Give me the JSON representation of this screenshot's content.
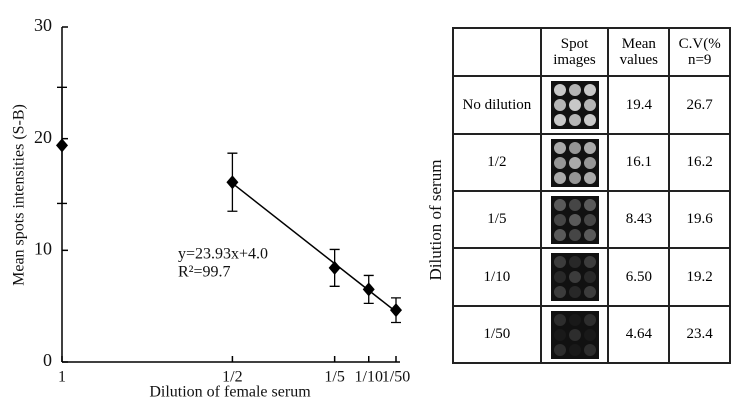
{
  "chart_data": {
    "type": "scatter",
    "ylabel": "Mean spots intensities (S-B)",
    "xlabel": "Dilution of female serum",
    "x": [
      1,
      0.5,
      0.2,
      0.1,
      0.02
    ],
    "values": [
      19.4,
      16.1,
      8.43,
      6.5,
      4.64
    ],
    "errors": [
      5.2,
      2.6,
      1.65,
      1.25,
      1.1
    ],
    "color": "#000000",
    "xlim": [
      1,
      0.02
    ],
    "xticks": [
      1,
      {
        "value": 0.5,
        "label": "1/2"
      },
      {
        "value": 0.2,
        "label": "1/5"
      },
      {
        "value": 0.1,
        "label": "1/10"
      },
      {
        "value": 0.02,
        "label": "1/50"
      }
    ],
    "ylim": [
      0,
      30
    ],
    "yticks": [
      0,
      10,
      20,
      30
    ],
    "fit": {
      "x": [
        0.5,
        0.02
      ],
      "values": [
        16.0,
        4.5
      ]
    },
    "annotations": [
      "y=23.93x+4.0",
      "R²=99.7"
    ]
  },
  "table": {
    "side_label": "Dilution of serum",
    "header": [
      "",
      "Spot images",
      "Mean values",
      [
        "C.V(%",
        "n=9"
      ]
    ],
    "rows": [
      [
        "No dilution",
        "19.4",
        "26.7"
      ],
      [
        "1/2",
        "16.1",
        "16.2"
      ],
      [
        "1/5",
        "8.43",
        "19.6"
      ],
      [
        "1/10",
        "6.50",
        "19.2"
      ],
      [
        "1/50",
        "4.64",
        "23.4"
      ]
    ]
  }
}
